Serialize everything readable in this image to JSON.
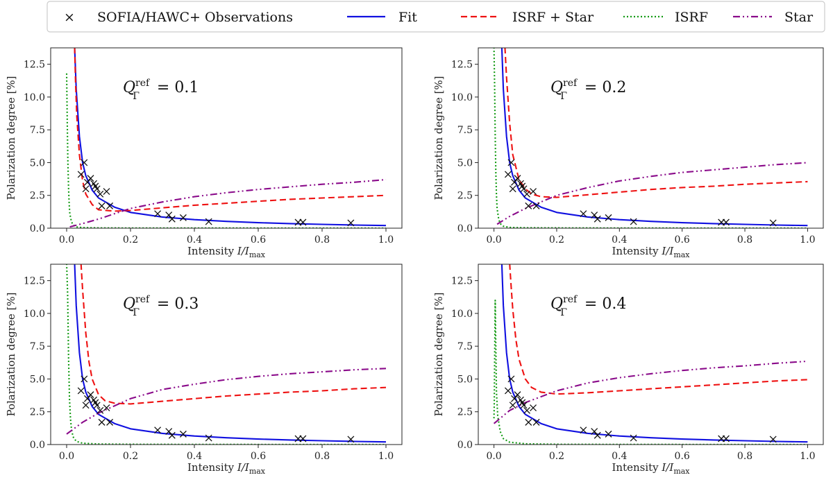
{
  "legend": {
    "items": [
      {
        "key": "obs",
        "label": "SOFIA/HAWC+ Observations"
      },
      {
        "key": "fit",
        "label": "Fit"
      },
      {
        "key": "both",
        "label": "ISRF + Star"
      },
      {
        "key": "isrf",
        "label": "ISRF"
      },
      {
        "key": "star",
        "label": "Star"
      }
    ]
  },
  "colors": {
    "fit": "#1010e0",
    "both": "#ee1111",
    "isrf": "#119911",
    "star": "#8a0a8a",
    "obs": "#111111"
  },
  "chart_data": [
    {
      "type": "line",
      "annotation": {
        "label": "Q_Γ^ref",
        "text": "= 0.1",
        "sub": "Γ",
        "sup": "ref"
      },
      "xlabel": "Intensity I/I_max",
      "ylabel": "Polarization degree [%]",
      "xlim": [
        -0.05,
        1.05
      ],
      "ylim": [
        0,
        13.75
      ],
      "xticks": [
        "0.0",
        "0.2",
        "0.4",
        "0.6",
        "0.8",
        "1.0"
      ],
      "yticks": [
        "0.0",
        "2.5",
        "5.0",
        "7.5",
        "10.0",
        "12.5"
      ],
      "observations": {
        "x": [
          0.045,
          0.055,
          0.06,
          0.065,
          0.075,
          0.085,
          0.09,
          0.095,
          0.105,
          0.11,
          0.125,
          0.135,
          0.285,
          0.32,
          0.33,
          0.365,
          0.445,
          0.725,
          0.74,
          0.89
        ],
        "y": [
          4.1,
          5.0,
          3.0,
          3.5,
          3.8,
          3.4,
          3.2,
          3.0,
          2.6,
          1.7,
          2.8,
          1.7,
          1.1,
          1.0,
          0.7,
          0.8,
          0.5,
          0.45,
          0.45,
          0.4
        ]
      },
      "series": [
        {
          "name": "Fit",
          "x": [
            0.025,
            0.03,
            0.04,
            0.05,
            0.06,
            0.08,
            0.1,
            0.15,
            0.2,
            0.3,
            0.4,
            0.5,
            0.6,
            0.7,
            0.8,
            0.9,
            1.0
          ],
          "y": [
            13.8,
            10.6,
            7.0,
            5.0,
            4.0,
            2.9,
            2.3,
            1.6,
            1.2,
            0.85,
            0.65,
            0.52,
            0.42,
            0.35,
            0.29,
            0.24,
            0.2
          ]
        },
        {
          "name": "ISRF + Star",
          "x": [
            0.025,
            0.028,
            0.032,
            0.04,
            0.05,
            0.06,
            0.08,
            0.1,
            0.15,
            0.2,
            0.3,
            0.4,
            0.5,
            0.6,
            0.7,
            0.8,
            0.9,
            1.0
          ],
          "y": [
            13.8,
            11.0,
            8.5,
            5.6,
            3.6,
            2.6,
            1.8,
            1.4,
            1.3,
            1.35,
            1.55,
            1.75,
            1.9,
            2.05,
            2.2,
            2.3,
            2.4,
            2.5
          ]
        },
        {
          "name": "ISRF",
          "x": [
            0.0,
            0.002,
            0.004,
            0.006,
            0.008,
            0.01,
            0.015,
            0.02,
            0.03,
            0.05,
            0.1,
            0.2,
            0.4,
            0.7,
            1.0
          ],
          "y": [
            11.8,
            8.0,
            5.0,
            3.0,
            1.8,
            1.1,
            0.5,
            0.25,
            0.1,
            0.04,
            0.02,
            0.01,
            0.01,
            0.005,
            0.0
          ]
        },
        {
          "name": "Star",
          "x": [
            0.01,
            0.05,
            0.1,
            0.2,
            0.3,
            0.4,
            0.5,
            0.6,
            0.7,
            0.8,
            0.9,
            1.0
          ],
          "y": [
            0.1,
            0.35,
            0.7,
            1.5,
            2.0,
            2.4,
            2.7,
            2.95,
            3.15,
            3.35,
            3.5,
            3.7
          ]
        }
      ]
    },
    {
      "type": "line",
      "annotation": {
        "label": "Q_Γ^ref",
        "text": "= 0.2",
        "sub": "Γ",
        "sup": "ref"
      },
      "xlabel": "Intensity I/I_max",
      "ylabel": "Polarization degree [%]",
      "xlim": [
        -0.05,
        1.05
      ],
      "ylim": [
        0,
        13.75
      ],
      "xticks": [
        "0.0",
        "0.2",
        "0.4",
        "0.6",
        "0.8",
        "1.0"
      ],
      "yticks": [
        "0.0",
        "2.5",
        "5.0",
        "7.5",
        "10.0",
        "12.5"
      ],
      "observations": {
        "x": [
          0.045,
          0.055,
          0.06,
          0.065,
          0.075,
          0.085,
          0.09,
          0.095,
          0.105,
          0.11,
          0.125,
          0.135,
          0.285,
          0.32,
          0.33,
          0.365,
          0.445,
          0.725,
          0.74,
          0.89
        ],
        "y": [
          4.1,
          5.0,
          3.0,
          3.5,
          3.8,
          3.4,
          3.2,
          3.0,
          2.6,
          1.7,
          2.8,
          1.7,
          1.1,
          1.0,
          0.7,
          0.8,
          0.5,
          0.45,
          0.45,
          0.4
        ]
      },
      "series": [
        {
          "name": "Fit",
          "x": [
            0.025,
            0.03,
            0.04,
            0.05,
            0.06,
            0.08,
            0.1,
            0.15,
            0.2,
            0.3,
            0.4,
            0.5,
            0.6,
            0.7,
            0.8,
            0.9,
            1.0
          ],
          "y": [
            13.8,
            10.6,
            7.0,
            5.0,
            4.0,
            2.9,
            2.3,
            1.6,
            1.2,
            0.85,
            0.65,
            0.52,
            0.42,
            0.35,
            0.29,
            0.24,
            0.2
          ]
        },
        {
          "name": "ISRF + Star",
          "x": [
            0.035,
            0.04,
            0.05,
            0.06,
            0.08,
            0.1,
            0.12,
            0.15,
            0.2,
            0.3,
            0.4,
            0.5,
            0.6,
            0.7,
            0.8,
            0.9,
            1.0
          ],
          "y": [
            13.8,
            11.5,
            8.0,
            5.6,
            3.7,
            3.0,
            2.6,
            2.4,
            2.35,
            2.55,
            2.75,
            2.95,
            3.1,
            3.2,
            3.35,
            3.45,
            3.55
          ]
        },
        {
          "name": "ISRF",
          "x": [
            0.0,
            0.002,
            0.004,
            0.006,
            0.008,
            0.01,
            0.015,
            0.02,
            0.03,
            0.05,
            0.1,
            0.2,
            0.4,
            0.7,
            1.0
          ],
          "y": [
            13.8,
            11.0,
            7.0,
            4.2,
            2.5,
            1.5,
            0.7,
            0.35,
            0.15,
            0.06,
            0.03,
            0.02,
            0.01,
            0.005,
            0.0
          ]
        },
        {
          "name": "Star",
          "x": [
            0.01,
            0.05,
            0.1,
            0.2,
            0.3,
            0.4,
            0.5,
            0.6,
            0.7,
            0.8,
            0.9,
            1.0
          ],
          "y": [
            0.3,
            0.9,
            1.5,
            2.5,
            3.1,
            3.6,
            3.95,
            4.25,
            4.45,
            4.65,
            4.85,
            5.0
          ]
        }
      ]
    },
    {
      "type": "line",
      "annotation": {
        "label": "Q_Γ^ref",
        "text": "= 0.3",
        "sub": "Γ",
        "sup": "ref"
      },
      "xlabel": "Intensity I/I_max",
      "ylabel": "Polarization degree [%]",
      "xlim": [
        -0.05,
        1.05
      ],
      "ylim": [
        0,
        13.75
      ],
      "xticks": [
        "0.0",
        "0.2",
        "0.4",
        "0.6",
        "0.8",
        "1.0"
      ],
      "yticks": [
        "0.0",
        "2.5",
        "5.0",
        "7.5",
        "10.0",
        "12.5"
      ],
      "observations": {
        "x": [
          0.045,
          0.055,
          0.06,
          0.065,
          0.075,
          0.085,
          0.09,
          0.095,
          0.105,
          0.11,
          0.125,
          0.135,
          0.285,
          0.32,
          0.33,
          0.365,
          0.445,
          0.725,
          0.74,
          0.89
        ],
        "y": [
          4.1,
          5.0,
          3.0,
          3.5,
          3.8,
          3.4,
          3.2,
          3.0,
          2.6,
          1.7,
          2.8,
          1.7,
          1.1,
          1.0,
          0.7,
          0.8,
          0.5,
          0.45,
          0.45,
          0.4
        ]
      },
      "series": [
        {
          "name": "Fit",
          "x": [
            0.025,
            0.03,
            0.04,
            0.05,
            0.06,
            0.08,
            0.1,
            0.15,
            0.2,
            0.3,
            0.4,
            0.5,
            0.6,
            0.7,
            0.8,
            0.9,
            1.0
          ],
          "y": [
            13.8,
            10.6,
            7.0,
            5.0,
            4.0,
            2.9,
            2.3,
            1.6,
            1.2,
            0.85,
            0.65,
            0.52,
            0.42,
            0.35,
            0.29,
            0.24,
            0.2
          ]
        },
        {
          "name": "ISRF + Star",
          "x": [
            0.045,
            0.05,
            0.06,
            0.07,
            0.08,
            0.1,
            0.12,
            0.15,
            0.2,
            0.25,
            0.3,
            0.4,
            0.5,
            0.6,
            0.7,
            0.8,
            0.9,
            1.0
          ],
          "y": [
            13.8,
            11.8,
            8.5,
            6.3,
            5.0,
            3.8,
            3.35,
            3.15,
            3.1,
            3.2,
            3.3,
            3.5,
            3.7,
            3.85,
            4.0,
            4.1,
            4.25,
            4.35
          ]
        },
        {
          "name": "ISRF",
          "x": [
            0.0,
            0.003,
            0.006,
            0.009,
            0.012,
            0.015,
            0.02,
            0.03,
            0.05,
            0.1,
            0.2,
            0.4,
            0.7,
            1.0
          ],
          "y": [
            13.8,
            11.5,
            6.5,
            3.5,
            2.0,
            1.2,
            0.6,
            0.25,
            0.1,
            0.04,
            0.02,
            0.01,
            0.005,
            0.0
          ]
        },
        {
          "name": "Star",
          "x": [
            0.0,
            0.05,
            0.1,
            0.2,
            0.3,
            0.4,
            0.5,
            0.6,
            0.7,
            0.8,
            0.9,
            1.0
          ],
          "y": [
            0.8,
            1.7,
            2.4,
            3.5,
            4.2,
            4.6,
            4.95,
            5.2,
            5.4,
            5.55,
            5.7,
            5.8
          ]
        }
      ]
    },
    {
      "type": "line",
      "annotation": {
        "label": "Q_Γ^ref",
        "text": "= 0.4",
        "sub": "Γ",
        "sup": "ref"
      },
      "xlabel": "Intensity I/I_max",
      "ylabel": "Polarization degree [%]",
      "xlim": [
        -0.05,
        1.05
      ],
      "ylim": [
        0,
        13.75
      ],
      "xticks": [
        "0.0",
        "0.2",
        "0.4",
        "0.6",
        "0.8",
        "1.0"
      ],
      "yticks": [
        "0.0",
        "2.5",
        "5.0",
        "7.5",
        "10.0",
        "12.5"
      ],
      "observations": {
        "x": [
          0.045,
          0.055,
          0.06,
          0.065,
          0.075,
          0.085,
          0.09,
          0.095,
          0.105,
          0.11,
          0.125,
          0.135,
          0.285,
          0.32,
          0.33,
          0.365,
          0.445,
          0.725,
          0.74,
          0.89
        ],
        "y": [
          4.1,
          5.0,
          3.0,
          3.5,
          3.8,
          3.4,
          3.2,
          3.0,
          2.6,
          1.7,
          2.8,
          1.7,
          1.1,
          1.0,
          0.7,
          0.8,
          0.5,
          0.45,
          0.45,
          0.4
        ]
      },
      "series": [
        {
          "name": "Fit",
          "x": [
            0.025,
            0.03,
            0.04,
            0.05,
            0.06,
            0.08,
            0.1,
            0.15,
            0.2,
            0.3,
            0.4,
            0.5,
            0.6,
            0.7,
            0.8,
            0.9,
            1.0
          ],
          "y": [
            13.8,
            10.6,
            7.0,
            5.0,
            4.0,
            2.9,
            2.3,
            1.6,
            1.2,
            0.85,
            0.65,
            0.52,
            0.42,
            0.35,
            0.29,
            0.24,
            0.2
          ]
        },
        {
          "name": "ISRF + Star",
          "x": [
            0.05,
            0.055,
            0.06,
            0.07,
            0.08,
            0.1,
            0.12,
            0.15,
            0.2,
            0.25,
            0.3,
            0.4,
            0.5,
            0.6,
            0.7,
            0.8,
            0.9,
            1.0
          ],
          "y": [
            13.8,
            12.0,
            10.3,
            8.0,
            6.5,
            5.0,
            4.35,
            4.0,
            3.85,
            3.9,
            3.95,
            4.1,
            4.25,
            4.4,
            4.55,
            4.7,
            4.85,
            4.95
          ]
        },
        {
          "name": "ISRF",
          "x": [
            0.0,
            0.001,
            0.002,
            0.004,
            0.008,
            0.012,
            0.02,
            0.03,
            0.05,
            0.1,
            0.2,
            0.4,
            0.7,
            1.0
          ],
          "y": [
            2.0,
            3.0,
            6.0,
            11.0,
            4.0,
            2.2,
            1.0,
            0.45,
            0.18,
            0.06,
            0.02,
            0.01,
            0.005,
            0.0
          ]
        },
        {
          "name": "Star",
          "x": [
            0.0,
            0.05,
            0.1,
            0.2,
            0.3,
            0.4,
            0.5,
            0.6,
            0.7,
            0.8,
            0.9,
            1.0
          ],
          "y": [
            1.6,
            2.6,
            3.2,
            4.1,
            4.7,
            5.1,
            5.4,
            5.65,
            5.85,
            6.0,
            6.2,
            6.35
          ]
        }
      ]
    }
  ]
}
